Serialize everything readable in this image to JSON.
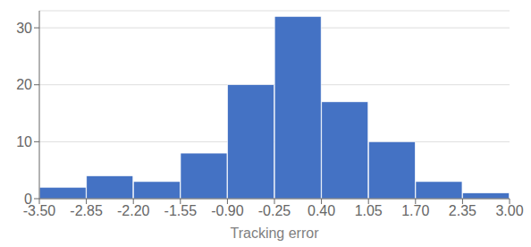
{
  "chart_data": {
    "type": "histogram",
    "xlabel": "Tracking error",
    "bins": [
      -3.5,
      -2.85,
      -2.2,
      -1.55,
      -0.9,
      -0.25,
      0.4,
      1.05,
      1.7,
      2.35,
      3.0
    ],
    "values": [
      2,
      4,
      3,
      8,
      20,
      32,
      17,
      10,
      3,
      1
    ],
    "color": "#4472C4",
    "xlim": [
      -3.5,
      3.0
    ],
    "ylim": [
      0,
      33
    ],
    "xticks": [
      {
        "value": -3.5,
        "label": "-3.50"
      },
      {
        "value": -2.85,
        "label": "-2.85"
      },
      {
        "value": -2.2,
        "label": "-2.20"
      },
      {
        "value": -1.55,
        "label": "-1.55"
      },
      {
        "value": -0.9,
        "label": "-0.90"
      },
      {
        "value": -0.25,
        "label": "-0.25"
      },
      {
        "value": 0.4,
        "label": "0.40"
      },
      {
        "value": 1.05,
        "label": "1.05"
      },
      {
        "value": 1.7,
        "label": "1.70"
      },
      {
        "value": 2.35,
        "label": "2.35"
      },
      {
        "value": 3.0,
        "label": "3.00"
      }
    ],
    "yticks": [
      0,
      10,
      20,
      30
    ],
    "grid": true
  }
}
